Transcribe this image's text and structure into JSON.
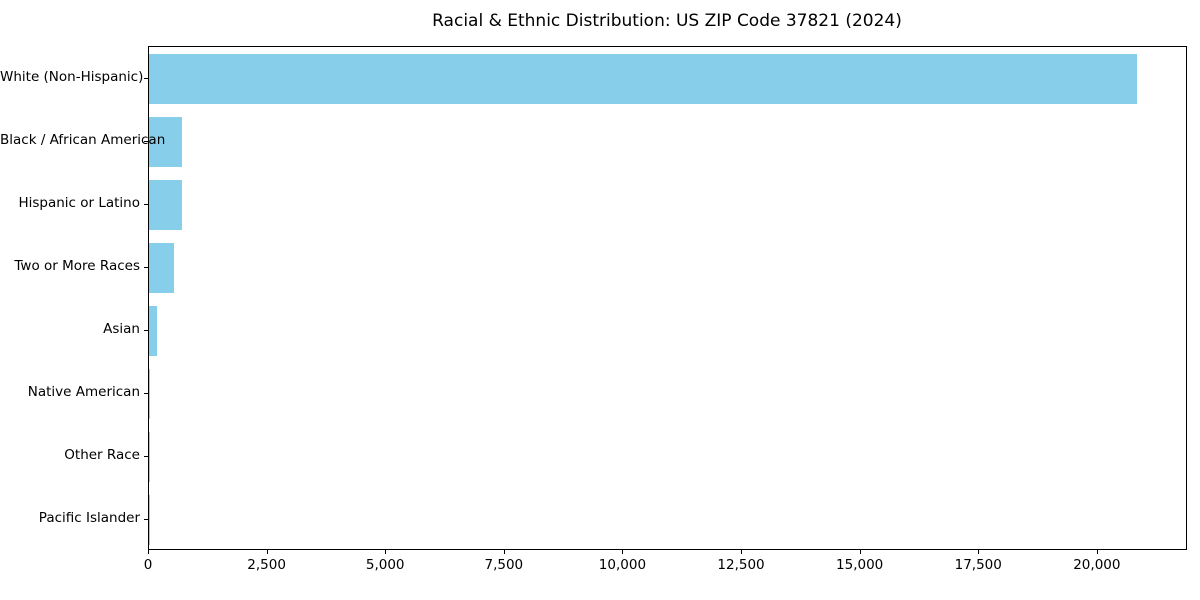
{
  "chart_data": {
    "type": "bar",
    "orientation": "horizontal",
    "title": "Racial & Ethnic Distribution: US ZIP Code 37821 (2024)",
    "xlabel": "",
    "ylabel": "",
    "categories": [
      "White (Non-Hispanic)",
      "Black / African American",
      "Hispanic or Latino",
      "Two or More Races",
      "Asian",
      "Native American",
      "Other Race",
      "Pacific Islander"
    ],
    "values": [
      20820,
      705,
      705,
      527,
      170,
      25,
      10,
      4
    ],
    "xlim": [
      0,
      21900
    ],
    "x_ticks": [
      0,
      2500,
      5000,
      7500,
      10000,
      12500,
      15000,
      17500,
      20000
    ],
    "x_tick_labels": [
      "0",
      "2,500",
      "5,000",
      "7,500",
      "10,000",
      "12,500",
      "15,000",
      "17,500",
      "20,000"
    ],
    "bar_color": "#87CEEB",
    "spine_color": "#000000",
    "grid": false,
    "legend": null
  }
}
